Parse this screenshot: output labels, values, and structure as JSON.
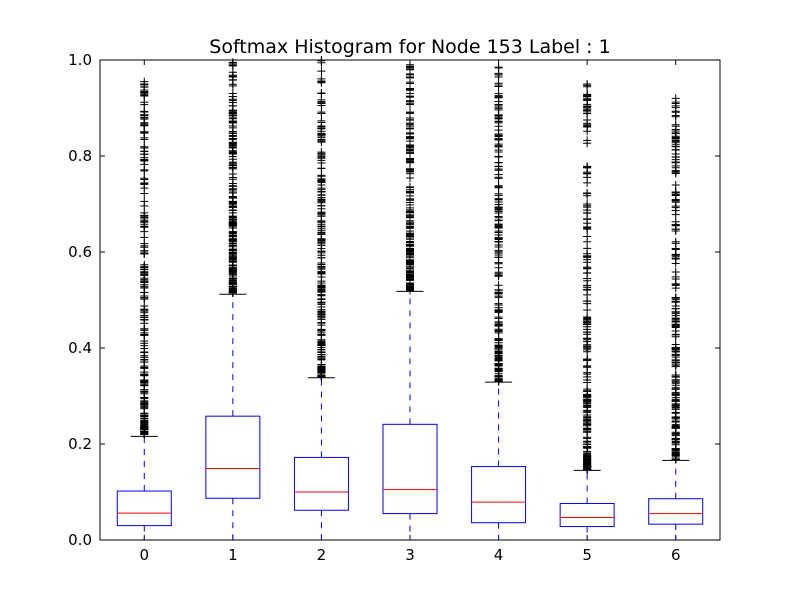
{
  "chart_data": {
    "type": "box",
    "title": "Softmax Histogram for Node 153 Label : 1",
    "xlabel": "",
    "ylabel": "",
    "categories": [
      "0",
      "1",
      "2",
      "3",
      "4",
      "5",
      "6"
    ],
    "ylim": [
      0.0,
      1.0
    ],
    "yticks": [
      "0.0",
      "0.2",
      "0.4",
      "0.6",
      "0.8",
      "1.0"
    ],
    "grid": false,
    "colors": {
      "box": "#0000ff",
      "median": "#ff0000",
      "whisker": "#0000ff",
      "cap": "#000000",
      "flier": "#000000"
    },
    "boxes": [
      {
        "category": "0",
        "min": 0.0,
        "q1": 0.03,
        "median": 0.056,
        "q3": 0.102,
        "whisker_high": 0.216,
        "fliers_range": [
          0.22,
          0.955
        ]
      },
      {
        "category": "1",
        "min": 0.0,
        "q1": 0.087,
        "median": 0.149,
        "q3": 0.258,
        "whisker_high": 0.512,
        "fliers_range": [
          0.515,
          0.995
        ]
      },
      {
        "category": "2",
        "min": 0.0,
        "q1": 0.062,
        "median": 0.1,
        "q3": 0.172,
        "whisker_high": 0.338,
        "fliers_range": [
          0.34,
          1.0
        ]
      },
      {
        "category": "3",
        "min": 0.0,
        "q1": 0.055,
        "median": 0.105,
        "q3": 0.241,
        "whisker_high": 0.518,
        "fliers_range": [
          0.52,
          0.99
        ]
      },
      {
        "category": "4",
        "min": 0.0,
        "q1": 0.036,
        "median": 0.079,
        "q3": 0.153,
        "whisker_high": 0.329,
        "fliers_range": [
          0.33,
          0.985
        ]
      },
      {
        "category": "5",
        "min": 0.0,
        "q1": 0.028,
        "median": 0.047,
        "q3": 0.076,
        "whisker_high": 0.145,
        "fliers_range": [
          0.147,
          0.95
        ]
      },
      {
        "category": "6",
        "min": 0.0,
        "q1": 0.033,
        "median": 0.055,
        "q3": 0.086,
        "whisker_high": 0.166,
        "fliers_range": [
          0.168,
          0.92
        ]
      }
    ]
  }
}
